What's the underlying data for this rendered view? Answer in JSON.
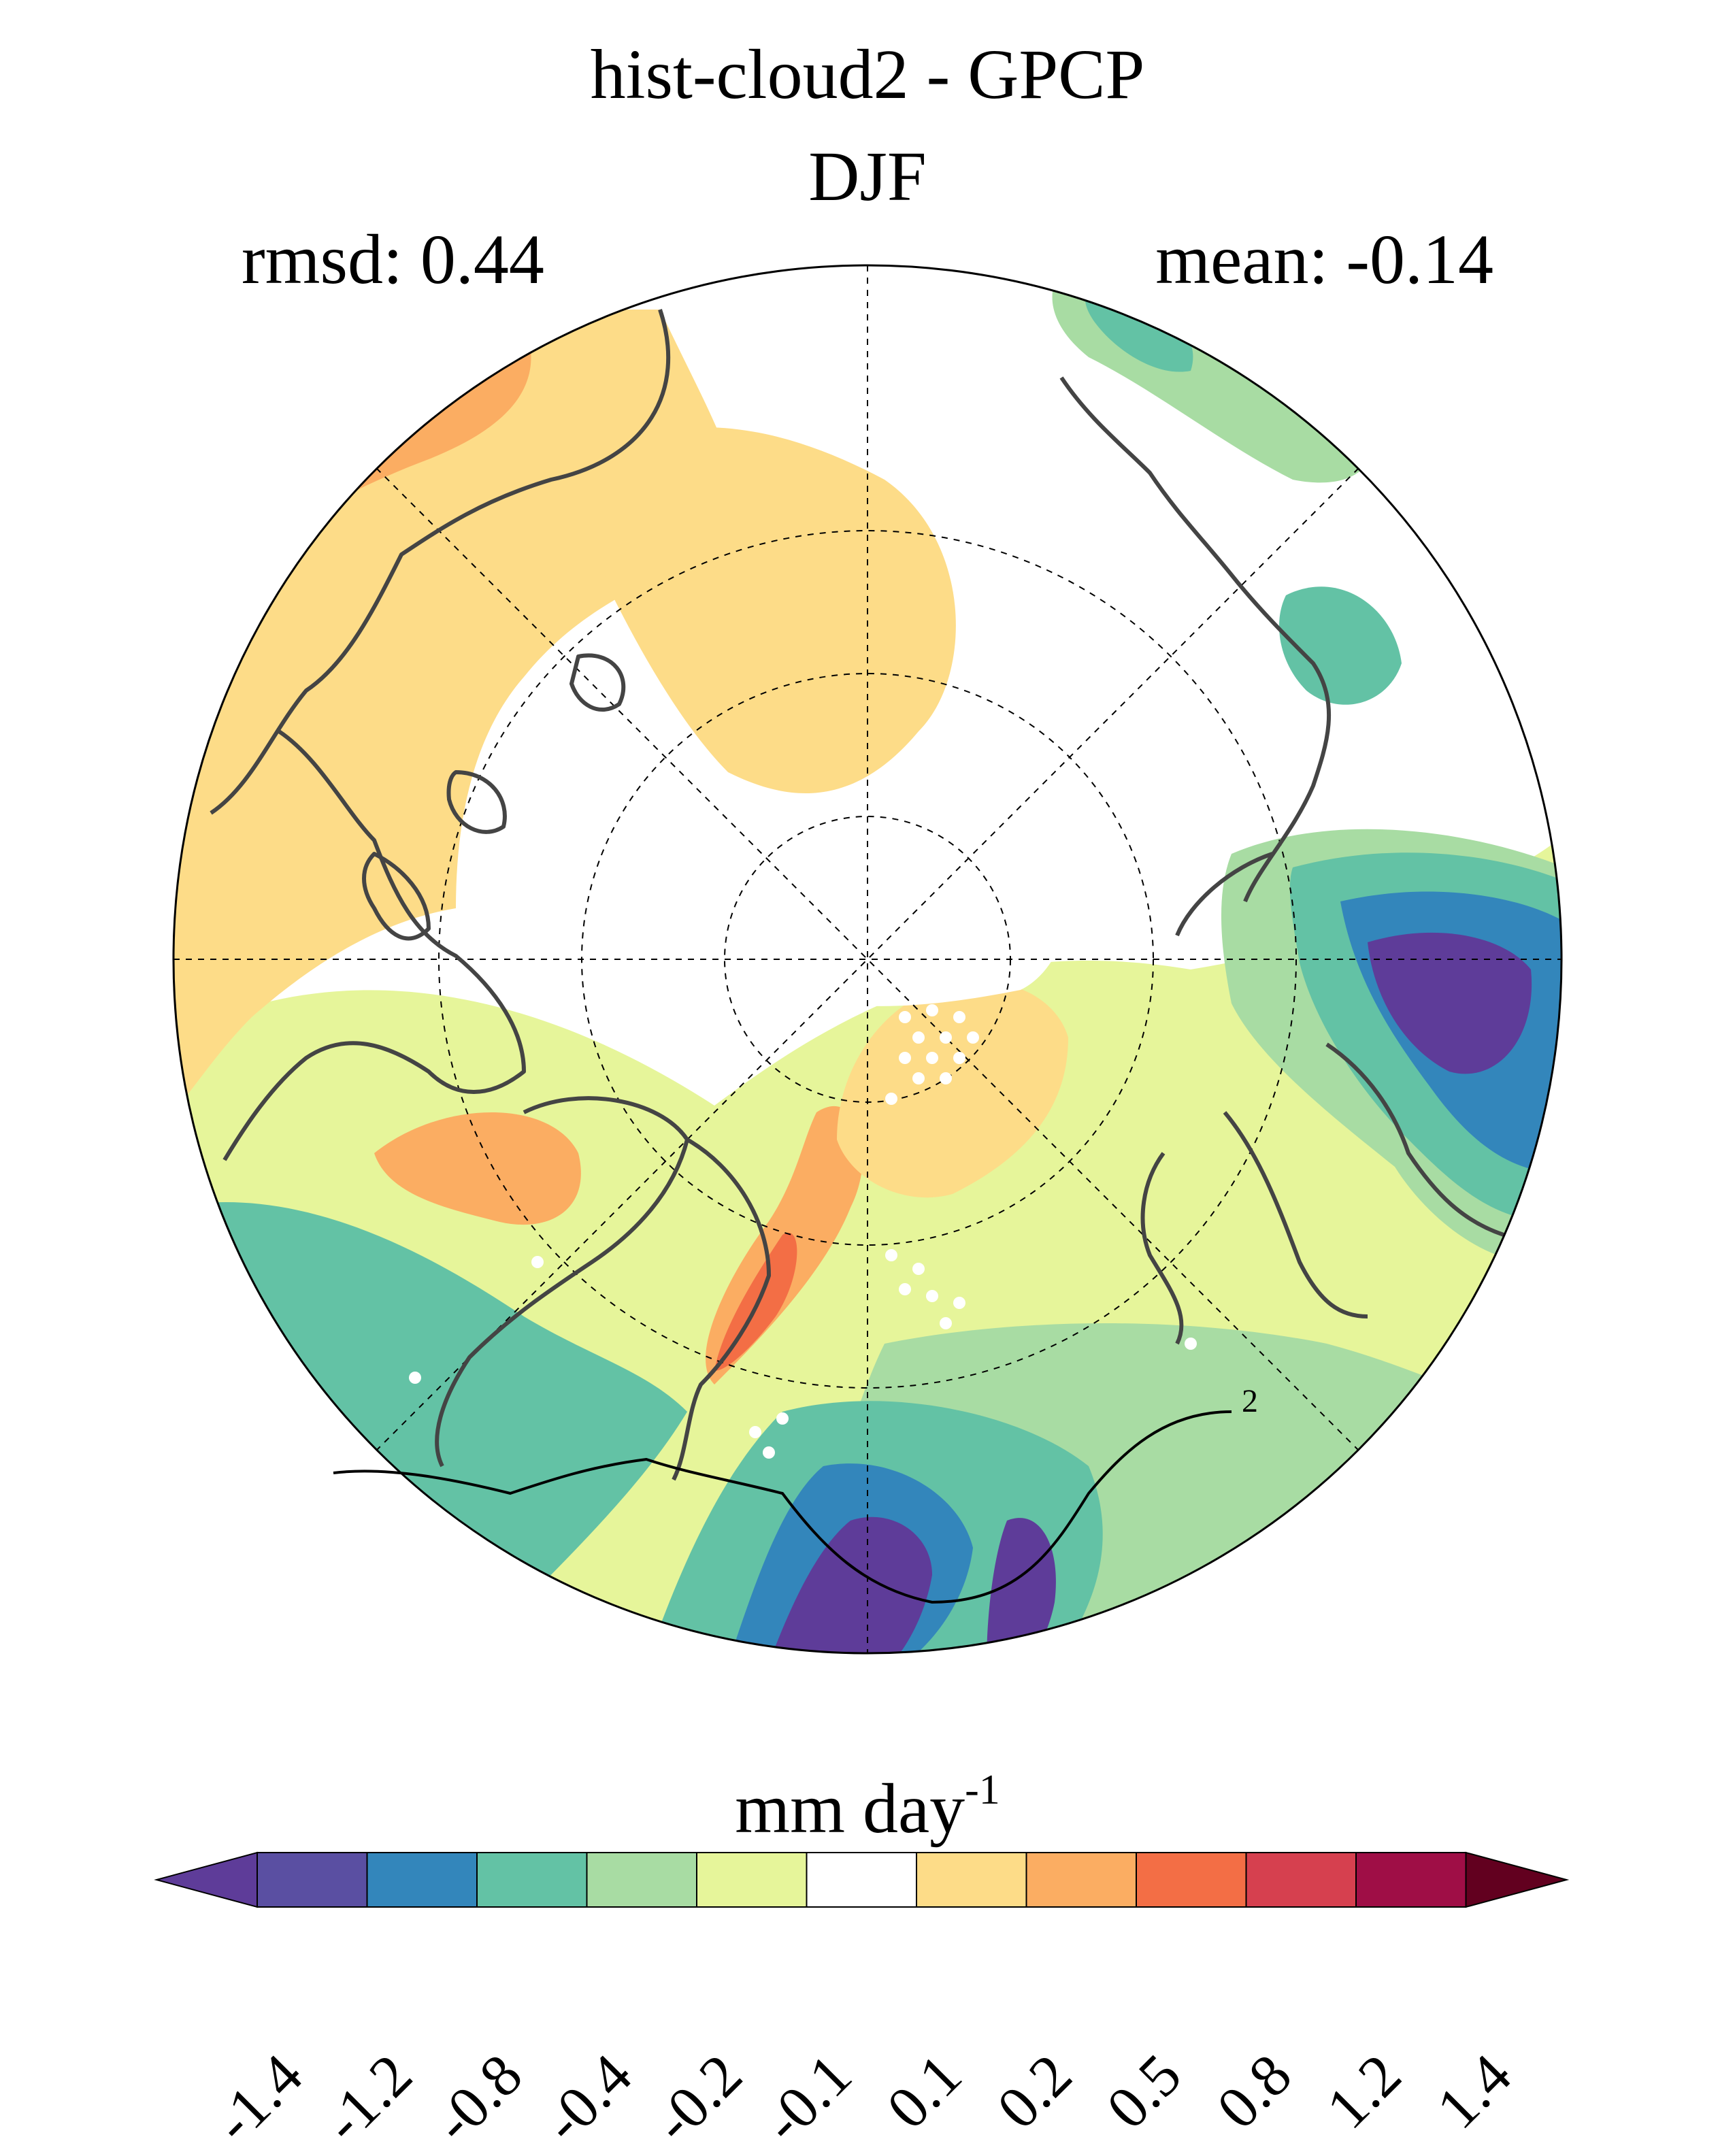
{
  "title": "hist-cloud2 - GPCP",
  "season": "DJF",
  "rmsd_text": "rmsd: 0.44",
  "mean_text": "mean: -0.14",
  "units": {
    "base": "mm day",
    "exponent": "-1"
  },
  "colorbar": {
    "levels": [
      "-1.4",
      "-1.2",
      "-0.8",
      "-0.4",
      "-0.2",
      "-0.1",
      "0.1",
      "0.2",
      "0.5",
      "0.8",
      "1.2",
      "1.4"
    ],
    "colors": [
      "#5e3c99",
      "#5a4fa2",
      "#3386bb",
      "#63c2a5",
      "#a8dca3",
      "#e6f59a",
      "#ffffff",
      "#fddc88",
      "#fbad62",
      "#f36e45",
      "#d6404f",
      "#9f0e46",
      "#62001f"
    ]
  },
  "map": {
    "projection": "north polar stereographic",
    "contour_label": "2",
    "stippling": "significance dots"
  }
}
